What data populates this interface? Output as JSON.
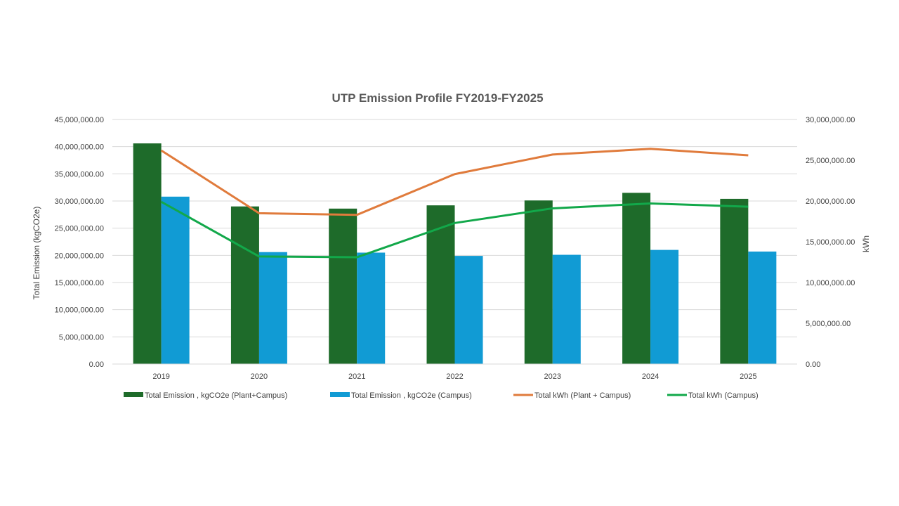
{
  "chart_data": {
    "type": "bar",
    "title": "UTP Emission Profile FY2019-FY2025",
    "categories": [
      "2019",
      "2020",
      "2021",
      "2022",
      "2023",
      "2024",
      "2025"
    ],
    "ylabel": "Total Emission  (kgCO2e)",
    "y2label": "kWh",
    "ylim": [
      0,
      45000000
    ],
    "y2lim": [
      0,
      30000000
    ],
    "yticks": [
      "0.00",
      "5,000,000.00",
      "10,000,000.00",
      "15,000,000.00",
      "20,000,000.00",
      "25,000,000.00",
      "30,000,000.00",
      "35,000,000.00",
      "40,000,000.00",
      "45,000,000.00"
    ],
    "y2ticks": [
      "0.00",
      "5,000,000.00",
      "10,000,000.00",
      "15,000,000.00",
      "20,000,000.00",
      "25,000,000.00",
      "30,000,000.00"
    ],
    "grid": true,
    "legend_position": "bottom",
    "series": [
      {
        "name": "Total Emission , kgCO2e (Plant+Campus)",
        "kind": "bar",
        "axis": "left",
        "color": "#1e6b2a",
        "values": [
          40600000,
          29000000,
          28600000,
          29200000,
          30100000,
          31500000,
          30400000
        ]
      },
      {
        "name": "Total Emission , kgCO2e (Campus)",
        "kind": "bar",
        "axis": "left",
        "color": "#119bd4",
        "values": [
          30800000,
          20600000,
          20500000,
          19900000,
          20100000,
          21000000,
          20700000
        ]
      },
      {
        "name": "Total kWh (Plant + Campus)",
        "kind": "line",
        "axis": "right",
        "color": "#e07b3c",
        "values": [
          26200000,
          18500000,
          18300000,
          23300000,
          25700000,
          26400000,
          25600000
        ]
      },
      {
        "name": "Total kWh (Campus)",
        "kind": "line",
        "axis": "right",
        "color": "#12a84a",
        "values": [
          19900000,
          13200000,
          13100000,
          17300000,
          19100000,
          19700000,
          19300000
        ]
      }
    ]
  }
}
